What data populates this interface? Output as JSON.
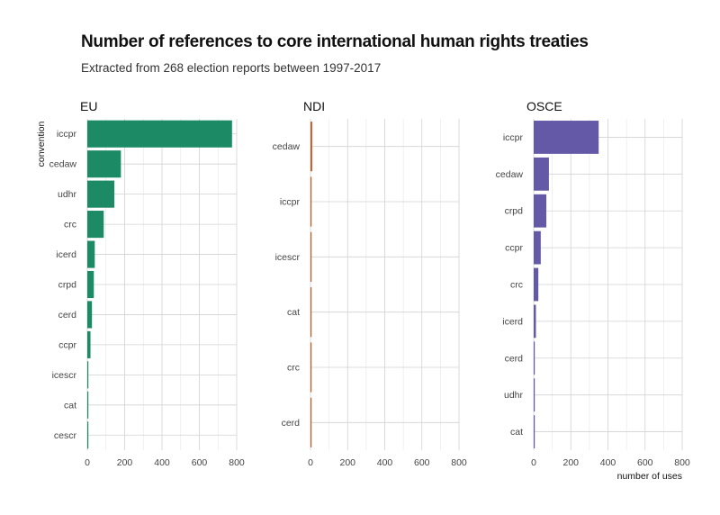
{
  "chart_data": {
    "type": "bar",
    "orientation": "horizontal",
    "title": "Number of references to core international human rights treaties",
    "subtitle": "Extracted from 268 election reports between 1997-2017",
    "ylabel": "convention",
    "xlabel": "number of uses",
    "xlim": [
      0,
      800
    ],
    "x_ticks": [
      0,
      200,
      400,
      600,
      800
    ],
    "grid": true,
    "facets": [
      {
        "name": "EU",
        "color": "#1b8a65",
        "categories": [
          "iccpr",
          "cedaw",
          "udhr",
          "crc",
          "icerd",
          "crpd",
          "cerd",
          "ccpr",
          "icescr",
          "cat",
          "cescr"
        ],
        "values": [
          775,
          180,
          145,
          88,
          40,
          35,
          25,
          17,
          5,
          5,
          4
        ]
      },
      {
        "name": "NDI",
        "color": "#c4531c",
        "categories": [
          "cedaw",
          "iccpr",
          "icescr",
          "cat",
          "crc",
          "cerd"
        ],
        "values": [
          9,
          4,
          3,
          3,
          2,
          1
        ]
      },
      {
        "name": "OSCE",
        "color": "#6359a6",
        "categories": [
          "iccpr",
          "cedaw",
          "crpd",
          "ccpr",
          "crc",
          "icerd",
          "cerd",
          "udhr",
          "cat"
        ],
        "values": [
          350,
          82,
          68,
          38,
          25,
          12,
          5,
          4,
          3
        ]
      }
    ]
  }
}
